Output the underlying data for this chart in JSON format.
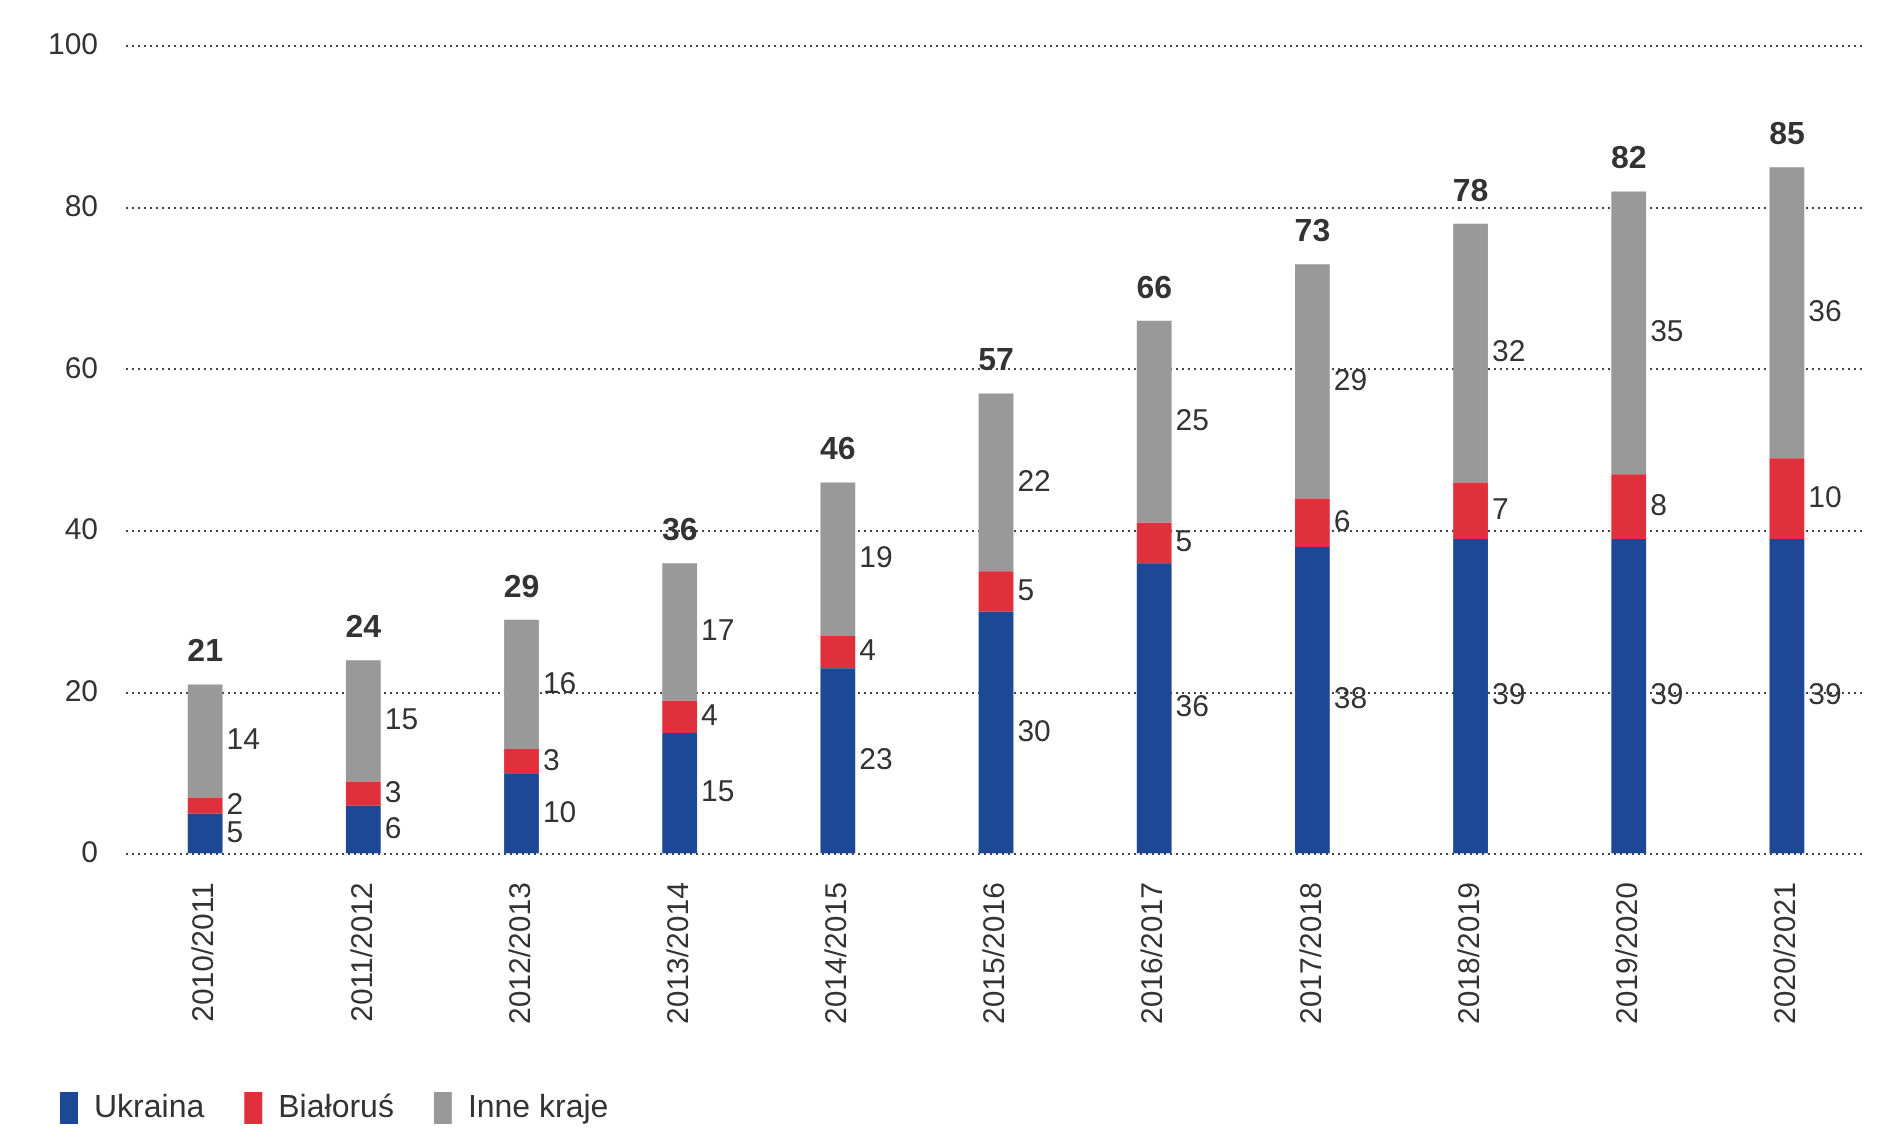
{
  "chart_data": {
    "type": "bar",
    "stacked": true,
    "categories": [
      "2010/2011",
      "2011/2012",
      "2012/2013",
      "2013/2014",
      "2014/2015",
      "2015/2016",
      "2016/2017",
      "2017/2018",
      "2018/2019",
      "2019/2020",
      "2020/2021"
    ],
    "series": [
      {
        "name": "Ukraina",
        "color": "#1c4896",
        "values": [
          5,
          6,
          10,
          15,
          23,
          30,
          36,
          38,
          39,
          39,
          39
        ]
      },
      {
        "name": "Białoruś",
        "color": "#e0303c",
        "values": [
          2,
          3,
          3,
          4,
          4,
          5,
          5,
          6,
          7,
          8,
          10
        ]
      },
      {
        "name": "Inne kraje",
        "color": "#999999",
        "values": [
          14,
          15,
          16,
          17,
          19,
          22,
          25,
          29,
          32,
          35,
          36
        ]
      }
    ],
    "totals": [
      "21",
      "24",
      "29",
      "36",
      "46",
      "57",
      "66",
      "73",
      "78",
      "82",
      "85"
    ],
    "ylim": [
      0,
      100
    ],
    "yticks": [
      0,
      20,
      40,
      60,
      80,
      100
    ],
    "grid": "y",
    "legend": "bottom left",
    "data_labels": true
  }
}
